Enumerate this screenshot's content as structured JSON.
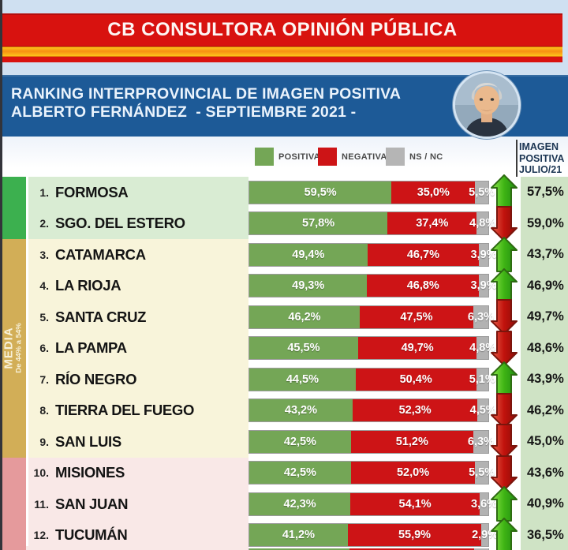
{
  "header": {
    "title": "CB CONSULTORA OPINIÓN PÚBLICA",
    "subtitle_line1": "RANKING INTERPROVINCIAL DE IMAGEN POSITIVA",
    "subtitle_line2": "ALBERTO FERNÁNDEZ  - SEPTIEMBRE 2021 -"
  },
  "legend": {
    "items": [
      {
        "label": "POSITIVA",
        "color": "#74a656"
      },
      {
        "label": "NEGATIVA",
        "color": "#cd1416"
      },
      {
        "label": "NS / NC",
        "color": "#b5b5b5"
      }
    ]
  },
  "right_column_header": {
    "line1": "IMAGEN",
    "line2": "POSITIVA",
    "line3": "JULIO/21"
  },
  "side_bands": {
    "media_label": "MEDIA",
    "media_range": "De 44% a 54%"
  },
  "colors": {
    "positiva": "#74a656",
    "negativa": "#cd1416",
    "nsnc": "#b2b2b2",
    "band_alta": "#3cb04f",
    "band_media": "#d2ae57",
    "band_baja": "#e59a9c",
    "row_alta": "#d9ecd3",
    "row_media": "#f8f4da",
    "row_baja": "#f9e8e7",
    "julio_column": "#cfe3c5",
    "banner_blue": "#1d5a97",
    "brand_red": "#d8120f",
    "stripe_orange": "#f78f12",
    "arrow_up": "#3fb414",
    "arrow_down": "#c1120c"
  },
  "rows": [
    {
      "rank": "1.",
      "province": "FORMOSA",
      "positiva_label": "59,5%",
      "negativa_label": "35,0%",
      "nsnc_label": "5,5%",
      "positiva": 59.5,
      "negativa": 35.0,
      "nsnc": 5.5,
      "trend": "up",
      "julio": "57,5%",
      "group": "alta"
    },
    {
      "rank": "2.",
      "province": "SGO. DEL ESTERO",
      "positiva_label": "57,8%",
      "negativa_label": "37,4%",
      "nsnc_label": "4,8%",
      "positiva": 57.8,
      "negativa": 37.4,
      "nsnc": 4.8,
      "trend": "down",
      "julio": "59,0%",
      "group": "alta"
    },
    {
      "rank": "3.",
      "province": "CATAMARCA",
      "positiva_label": "49,4%",
      "negativa_label": "46,7%",
      "nsnc_label": "3,9%",
      "positiva": 49.4,
      "negativa": 46.7,
      "nsnc": 3.9,
      "trend": "up",
      "julio": "43,7%",
      "group": "media"
    },
    {
      "rank": "4.",
      "province": "LA RIOJA",
      "positiva_label": "49,3%",
      "negativa_label": "46,8%",
      "nsnc_label": "3,9%",
      "positiva": 49.3,
      "negativa": 46.8,
      "nsnc": 3.9,
      "trend": "up",
      "julio": "46,9%",
      "group": "media"
    },
    {
      "rank": "5.",
      "province": "SANTA CRUZ",
      "positiva_label": "46,2%",
      "negativa_label": "47,5%",
      "nsnc_label": "6,3%",
      "positiva": 46.2,
      "negativa": 47.5,
      "nsnc": 6.3,
      "trend": "down",
      "julio": "49,7%",
      "group": "media"
    },
    {
      "rank": "6.",
      "province": "LA PAMPA",
      "positiva_label": "45,5%",
      "negativa_label": "49,7%",
      "nsnc_label": "4,8%",
      "positiva": 45.5,
      "negativa": 49.7,
      "nsnc": 4.8,
      "trend": "down",
      "julio": "48,6%",
      "group": "media"
    },
    {
      "rank": "7.",
      "province": "RÍO NEGRO",
      "positiva_label": "44,5%",
      "negativa_label": "50,4%",
      "nsnc_label": "5,1%",
      "positiva": 44.5,
      "negativa": 50.4,
      "nsnc": 5.1,
      "trend": "up",
      "julio": "43,9%",
      "group": "media"
    },
    {
      "rank": "8.",
      "province": "TIERRA DEL FUEGO",
      "positiva_label": "43,2%",
      "negativa_label": "52,3%",
      "nsnc_label": "4,5%",
      "positiva": 43.2,
      "negativa": 52.3,
      "nsnc": 4.5,
      "trend": "down",
      "julio": "46,2%",
      "group": "media"
    },
    {
      "rank": "9.",
      "province": "SAN LUIS",
      "positiva_label": "42,5%",
      "negativa_label": "51,2%",
      "nsnc_label": "6,3%",
      "positiva": 42.5,
      "negativa": 51.2,
      "nsnc": 6.3,
      "trend": "down",
      "julio": "45,0%",
      "group": "media"
    },
    {
      "rank": "10.",
      "province": "MISIONES",
      "positiva_label": "42,5%",
      "negativa_label": "52,0%",
      "nsnc_label": "5,5%",
      "positiva": 42.5,
      "negativa": 52.0,
      "nsnc": 5.5,
      "trend": "down",
      "julio": "43,6%",
      "group": "baja"
    },
    {
      "rank": "11.",
      "province": "SAN JUAN",
      "positiva_label": "42,3%",
      "negativa_label": "54,1%",
      "nsnc_label": "3,6%",
      "positiva": 42.3,
      "negativa": 54.1,
      "nsnc": 3.6,
      "trend": "up",
      "julio": "40,9%",
      "group": "baja"
    },
    {
      "rank": "12.",
      "province": "TUCUMÁN",
      "positiva_label": "41,2%",
      "negativa_label": "55,9%",
      "nsnc_label": "2,9%",
      "positiva": 41.2,
      "negativa": 55.9,
      "nsnc": 2.9,
      "trend": "up",
      "julio": "36,5%",
      "group": "baja"
    }
  ],
  "chart_data": {
    "type": "bar",
    "stacked": true,
    "orientation": "horizontal",
    "title": "RANKING INTERPROVINCIAL DE IMAGEN POSITIVA ALBERTO FERNÁNDEZ - SEPTIEMBRE 2021 -",
    "source": "CB CONSULTORA OPINIÓN PÚBLICA",
    "categories": [
      "FORMOSA",
      "SGO. DEL ESTERO",
      "CATAMARCA",
      "LA RIOJA",
      "SANTA CRUZ",
      "LA PAMPA",
      "RÍO NEGRO",
      "TIERRA DEL FUEGO",
      "SAN LUIS",
      "MISIONES",
      "SAN JUAN",
      "TUCUMÁN"
    ],
    "series": [
      {
        "name": "POSITIVA",
        "color": "#74a656",
        "values": [
          59.5,
          57.8,
          49.4,
          49.3,
          46.2,
          45.5,
          44.5,
          43.2,
          42.5,
          42.5,
          42.3,
          41.2
        ]
      },
      {
        "name": "NEGATIVA",
        "color": "#cd1416",
        "values": [
          35.0,
          37.4,
          46.7,
          46.8,
          47.5,
          49.7,
          50.4,
          52.3,
          51.2,
          52.0,
          54.1,
          55.9
        ]
      },
      {
        "name": "NS / NC",
        "color": "#b2b2b2",
        "values": [
          5.5,
          4.8,
          3.9,
          3.9,
          6.3,
          4.8,
          5.1,
          4.5,
          6.3,
          5.5,
          3.6,
          2.9
        ]
      }
    ],
    "comparison_column": {
      "label": "IMAGEN POSITIVA JULIO/21",
      "values": [
        57.5,
        59.0,
        43.7,
        46.9,
        49.7,
        48.6,
        43.9,
        46.2,
        45.0,
        43.6,
        40.9,
        36.5
      ]
    },
    "trend_vs_july": [
      "up",
      "down",
      "up",
      "up",
      "down",
      "down",
      "up",
      "down",
      "down",
      "down",
      "up",
      "up"
    ],
    "group_bands": [
      {
        "rows": [
          1,
          2
        ],
        "label": "",
        "color": "#3cb04f"
      },
      {
        "rows": [
          3,
          9
        ],
        "label": "MEDIA De 44% a 54%",
        "color": "#d2ae57"
      },
      {
        "rows": [
          10,
          12
        ],
        "label": "",
        "color": "#e59a9c"
      }
    ],
    "xlim": [
      0,
      100
    ],
    "legend_position": "top"
  }
}
